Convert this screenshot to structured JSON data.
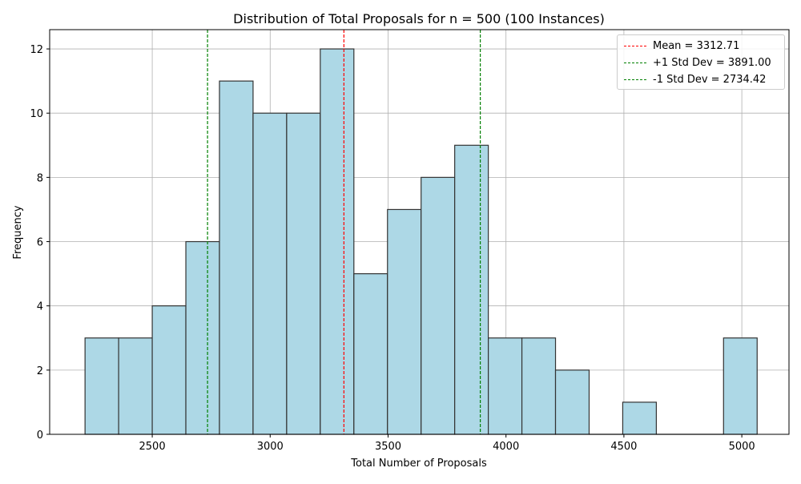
{
  "chart_data": {
    "type": "bar",
    "subtype": "histogram",
    "title": "Distribution of Total Proposals for n = 500 (100 Instances)",
    "xlabel": "Total Number of Proposals",
    "ylabel": "Frequency",
    "xlim": [
      2065,
      5200
    ],
    "ylim": [
      0,
      12.6
    ],
    "xticks": [
      2500,
      3000,
      3500,
      4000,
      4500,
      5000
    ],
    "yticks": [
      0,
      2,
      4,
      6,
      8,
      10,
      12
    ],
    "grid": true,
    "bar_color": "#add8e6",
    "bar_edge_color": "#333333",
    "bin_edges": [
      2215.0,
      2357.5,
      2500.0,
      2642.5,
      2785.0,
      2927.5,
      3070.0,
      3212.5,
      3355.0,
      3497.5,
      3640.0,
      3782.5,
      3925.0,
      4067.5,
      4210.0,
      4352.5,
      4495.0,
      4637.5,
      4780.0,
      4922.5,
      5065.0
    ],
    "counts": [
      3,
      3,
      4,
      6,
      11,
      10,
      10,
      12,
      5,
      7,
      8,
      9,
      3,
      3,
      2,
      0,
      1,
      0,
      0,
      3
    ],
    "reference_lines": [
      {
        "label": "Mean = 3312.71",
        "x": 3312.71,
        "color": "#ff0000"
      },
      {
        "label": "+1 Std Dev = 3891.00",
        "x": 3891.0,
        "color": "#008000"
      },
      {
        "label": "-1 Std Dev = 2734.42",
        "x": 2734.42,
        "color": "#008000"
      }
    ],
    "legend_position": "top-right"
  }
}
